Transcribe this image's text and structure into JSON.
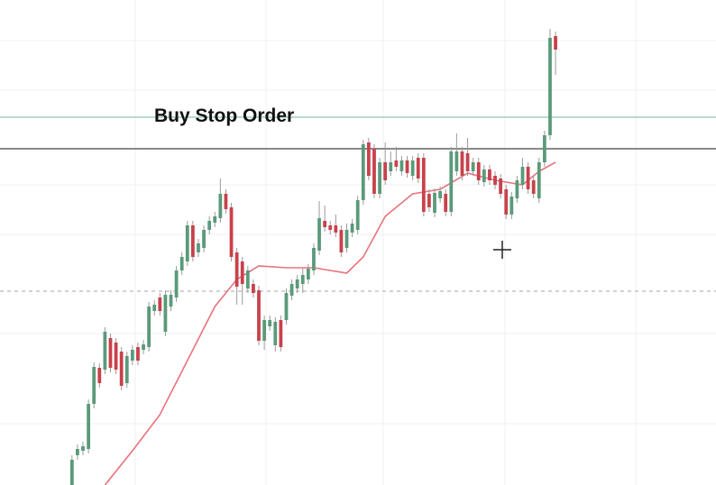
{
  "chart_data": {
    "type": "candlestick",
    "up_color": "#5a9a7a",
    "down_color": "#c8414b",
    "wick_color": "#9a9a9a",
    "xlim": [
      -13.1,
      117.2
    ],
    "ylim": [
      0,
      538
    ],
    "ohlc": [
      [
        0,
        33,
        0,
        28
      ],
      [
        33,
        45,
        28,
        40
      ],
      [
        38,
        48,
        33,
        43
      ],
      [
        40,
        95,
        35,
        90
      ],
      [
        90,
        136,
        85,
        131
      ],
      [
        130,
        135,
        108,
        113
      ],
      [
        128,
        175,
        123,
        170
      ],
      [
        163,
        168,
        125,
        130
      ],
      [
        158,
        163,
        123,
        128
      ],
      [
        148,
        153,
        105,
        110
      ],
      [
        113,
        148,
        108,
        143
      ],
      [
        138,
        155,
        133,
        150
      ],
      [
        153,
        158,
        133,
        138
      ],
      [
        150,
        161,
        145,
        156
      ],
      [
        153,
        203,
        148,
        198
      ],
      [
        193,
        205,
        188,
        200
      ],
      [
        208,
        213,
        188,
        193
      ],
      [
        170,
        216,
        165,
        211
      ],
      [
        198,
        216,
        193,
        211
      ],
      [
        208,
        243,
        203,
        238
      ],
      [
        238,
        258,
        233,
        253
      ],
      [
        248,
        293,
        243,
        288
      ],
      [
        288,
        293,
        248,
        253
      ],
      [
        258,
        273,
        253,
        268
      ],
      [
        263,
        288,
        258,
        283
      ],
      [
        283,
        298,
        278,
        293
      ],
      [
        291,
        303,
        286,
        298
      ],
      [
        296,
        340,
        291,
        323
      ],
      [
        323,
        328,
        301,
        306
      ],
      [
        308,
        313,
        248,
        253
      ],
      [
        258,
        263,
        200,
        220
      ],
      [
        248,
        253,
        200,
        223
      ],
      [
        218,
        243,
        213,
        238
      ],
      [
        223,
        228,
        208,
        213
      ],
      [
        216,
        221,
        155,
        160
      ],
      [
        160,
        188,
        150,
        183
      ],
      [
        176,
        188,
        171,
        183
      ],
      [
        155,
        186,
        148,
        181
      ],
      [
        183,
        188,
        148,
        153
      ],
      [
        183,
        218,
        178,
        213
      ],
      [
        210,
        228,
        205,
        223
      ],
      [
        218,
        233,
        213,
        228
      ],
      [
        223,
        240,
        213,
        233
      ],
      [
        228,
        245,
        223,
        240
      ],
      [
        238,
        268,
        233,
        263
      ],
      [
        260,
        315,
        255,
        296
      ],
      [
        293,
        310,
        281,
        286
      ],
      [
        288,
        293,
        278,
        283
      ],
      [
        288,
        300,
        275,
        280
      ],
      [
        283,
        288,
        253,
        258
      ],
      [
        263,
        290,
        258,
        283
      ],
      [
        280,
        295,
        275,
        290
      ],
      [
        283,
        321,
        278,
        316
      ],
      [
        316,
        383,
        311,
        378
      ],
      [
        380,
        385,
        338,
        343
      ],
      [
        373,
        378,
        318,
        323
      ],
      [
        323,
        363,
        318,
        358
      ],
      [
        358,
        380,
        333,
        338
      ],
      [
        348,
        370,
        343,
        358
      ],
      [
        360,
        375,
        348,
        353
      ],
      [
        348,
        365,
        343,
        360
      ],
      [
        360,
        365,
        341,
        346
      ],
      [
        343,
        365,
        338,
        360
      ],
      [
        363,
        368,
        335,
        340
      ],
      [
        363,
        368,
        298,
        303
      ],
      [
        323,
        328,
        303,
        308
      ],
      [
        302,
        329,
        297,
        324
      ],
      [
        318,
        331,
        313,
        326
      ],
      [
        323,
        328,
        298,
        303
      ],
      [
        303,
        375,
        298,
        370
      ],
      [
        348,
        390,
        343,
        370
      ],
      [
        370,
        375,
        338,
        343
      ],
      [
        368,
        385,
        343,
        348
      ],
      [
        348,
        363,
        343,
        358
      ],
      [
        358,
        363,
        333,
        338
      ],
      [
        336,
        355,
        331,
        350
      ],
      [
        350,
        355,
        333,
        338
      ],
      [
        343,
        348,
        328,
        333
      ],
      [
        340,
        345,
        318,
        323
      ],
      [
        328,
        333,
        295,
        300
      ],
      [
        300,
        325,
        295,
        320
      ],
      [
        318,
        343,
        313,
        338
      ],
      [
        333,
        363,
        328,
        353
      ],
      [
        353,
        358,
        323,
        328
      ],
      [
        338,
        343,
        318,
        323
      ],
      [
        318,
        363,
        313,
        358
      ],
      [
        358,
        393,
        353,
        388
      ],
      [
        388,
        506,
        383,
        496
      ],
      [
        498,
        503,
        455,
        483
      ]
    ],
    "moving_average": {
      "color": "#e8727c",
      "x": [
        6,
        11,
        16,
        21,
        26,
        30,
        34,
        39,
        44,
        50,
        53,
        57,
        62,
        67,
        72,
        77,
        82,
        85,
        88
      ],
      "values": [
        0,
        38,
        78,
        138,
        198,
        228,
        243,
        241,
        241,
        235,
        253,
        298,
        323,
        328,
        346,
        338,
        333,
        348,
        358
      ]
    },
    "hlines": [
      {
        "value": 408,
        "color": "#8cc7b4",
        "style": "solid"
      },
      {
        "value": 373,
        "color": "#444444",
        "style": "solid"
      },
      {
        "value": 215,
        "color": "#b8b8b8",
        "style": "dashed"
      }
    ],
    "annotation": "Buy Stop Order"
  }
}
